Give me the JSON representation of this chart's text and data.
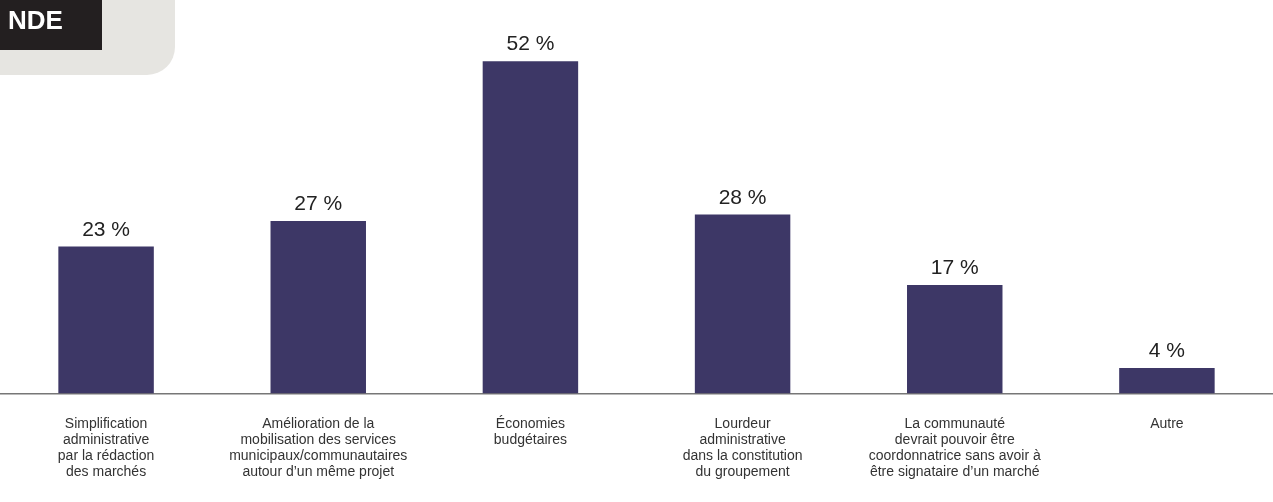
{
  "chart_data": {
    "type": "bar",
    "title": "NDE",
    "categories": [
      "Simplification\nadministrative\npar la rédaction\ndes marchés",
      "Amélioration de la\nmobilisation des services\nmunicipaux/communautaires\nautour d’un même projet",
      "Économies\nbudgétaires",
      "Lourdeur\nadministrative\ndans la constitution\ndu groupement",
      "La communauté\ndevrait pouvoir être\ncoordonnatrice sans avoir à\nêtre signataire d’un marché",
      "Autre"
    ],
    "values": [
      23,
      27,
      52,
      28,
      17,
      4
    ],
    "value_labels": [
      "23 %",
      "27 %",
      "52 %",
      "28 %",
      "17 %",
      "4 %"
    ],
    "color": "#3d3766",
    "legend": false,
    "grid": false,
    "tick_labels": "x"
  }
}
